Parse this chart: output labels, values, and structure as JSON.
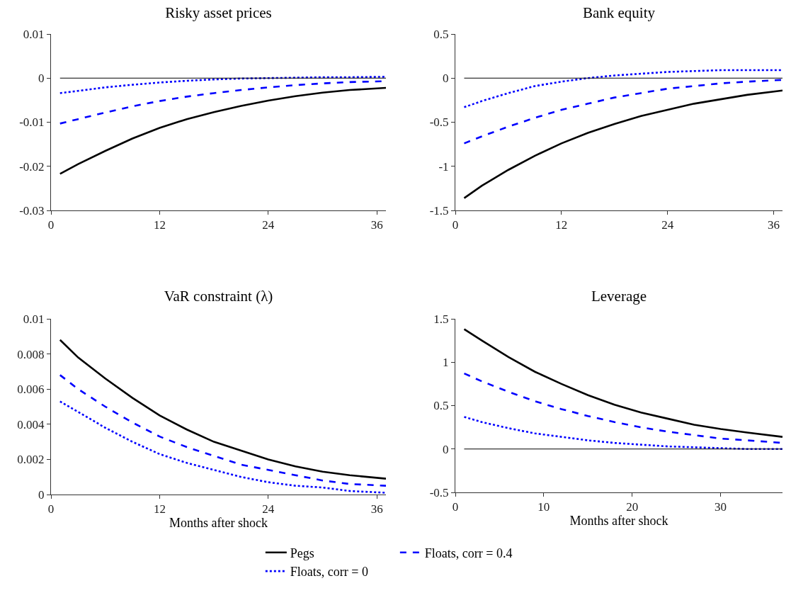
{
  "chart_data": [
    {
      "type": "line",
      "title": "Risky asset prices",
      "x": [
        1,
        3,
        6,
        9,
        12,
        15,
        18,
        21,
        24,
        27,
        30,
        33,
        37
      ],
      "xlim": [
        0,
        37
      ],
      "xticks": [
        0,
        12,
        24,
        36
      ],
      "ylim": [
        -0.03,
        0.01
      ],
      "yticks": [
        -0.03,
        -0.02,
        -0.01,
        0,
        0.01
      ],
      "grid": false,
      "legend": false,
      "ref_lines": [
        {
          "axis": "y",
          "value": 0,
          "color": "#000000"
        }
      ],
      "series": [
        {
          "color": "#000000",
          "line_style": "solid",
          "values": [
            -0.0217,
            -0.0195,
            -0.0165,
            -0.0137,
            -0.0113,
            -0.0093,
            -0.0077,
            -0.0063,
            -0.0051,
            -0.0041,
            -0.0033,
            -0.0027,
            -0.0022
          ]
        },
        {
          "color": "#0000ff",
          "line_style": "dashed",
          "values": [
            -0.0103,
            -0.0093,
            -0.0078,
            -0.0064,
            -0.0052,
            -0.0042,
            -0.0034,
            -0.0027,
            -0.0021,
            -0.0016,
            -0.0012,
            -0.0009,
            -0.0007
          ]
        },
        {
          "color": "#0000ff",
          "line_style": "dotted",
          "values": [
            -0.0034,
            -0.0029,
            -0.0021,
            -0.0015,
            -0.001,
            -0.0006,
            -0.0003,
            -0.0001,
            0,
            0.0001,
            0.0002,
            0.0002,
            0.0003
          ]
        }
      ]
    },
    {
      "type": "line",
      "title": "Bank equity",
      "x": [
        1,
        3,
        6,
        9,
        12,
        15,
        18,
        21,
        24,
        27,
        30,
        33,
        37
      ],
      "xlim": [
        0,
        37
      ],
      "xticks": [
        0,
        12,
        24,
        36
      ],
      "ylim": [
        -1.5,
        0.5
      ],
      "yticks": [
        -1.5,
        -1,
        -0.5,
        0,
        0.5
      ],
      "grid": false,
      "legend": false,
      "ref_lines": [
        {
          "axis": "y",
          "value": 0,
          "color": "#000000"
        }
      ],
      "series": [
        {
          "color": "#000000",
          "line_style": "solid",
          "values": [
            -1.36,
            -1.22,
            -1.04,
            -0.88,
            -0.74,
            -0.62,
            -0.52,
            -0.43,
            -0.36,
            -0.29,
            -0.24,
            -0.19,
            -0.14
          ]
        },
        {
          "color": "#0000ff",
          "line_style": "dashed",
          "values": [
            -0.74,
            -0.66,
            -0.55,
            -0.45,
            -0.36,
            -0.29,
            -0.22,
            -0.17,
            -0.12,
            -0.09,
            -0.06,
            -0.04,
            -0.02
          ]
        },
        {
          "color": "#0000ff",
          "line_style": "dotted",
          "values": [
            -0.33,
            -0.26,
            -0.17,
            -0.09,
            -0.04,
            0,
            0.03,
            0.05,
            0.07,
            0.08,
            0.09,
            0.09,
            0.09
          ]
        }
      ]
    },
    {
      "type": "line",
      "title": "VaR constraint (λ)",
      "xlabel": "Months after shock",
      "x": [
        1,
        3,
        6,
        9,
        12,
        15,
        18,
        21,
        24,
        27,
        30,
        33,
        37
      ],
      "xlim": [
        0,
        37
      ],
      "xticks": [
        0,
        12,
        24,
        36
      ],
      "ylim": [
        0,
        0.01
      ],
      "yticks": [
        0,
        0.002,
        0.004,
        0.006,
        0.008,
        0.01
      ],
      "grid": false,
      "legend": false,
      "series": [
        {
          "color": "#000000",
          "line_style": "solid",
          "values": [
            0.0088,
            0.0078,
            0.0066,
            0.0055,
            0.0045,
            0.0037,
            0.003,
            0.0025,
            0.002,
            0.0016,
            0.0013,
            0.0011,
            0.0009
          ]
        },
        {
          "color": "#0000ff",
          "line_style": "dashed",
          "values": [
            0.0068,
            0.006,
            0.005,
            0.0041,
            0.0033,
            0.0027,
            0.0022,
            0.0017,
            0.0014,
            0.0011,
            0.0008,
            0.0006,
            0.0005
          ]
        },
        {
          "color": "#0000ff",
          "line_style": "dotted",
          "values": [
            0.0053,
            0.0047,
            0.0038,
            0.003,
            0.0023,
            0.0018,
            0.0014,
            0.001,
            0.0007,
            0.0005,
            0.0004,
            0.0002,
            0.0001
          ]
        }
      ]
    },
    {
      "type": "line",
      "title": "Leverage",
      "xlabel": "Months after shock",
      "x": [
        1,
        3,
        6,
        9,
        12,
        15,
        18,
        21,
        24,
        27,
        30,
        33,
        37
      ],
      "xlim": [
        0,
        37
      ],
      "xticks": [
        0,
        10,
        20,
        30
      ],
      "ylim": [
        -0.5,
        1.5
      ],
      "yticks": [
        -0.5,
        0,
        0.5,
        1,
        1.5
      ],
      "grid": false,
      "legend": "bottom",
      "ref_lines": [
        {
          "axis": "y",
          "value": 0,
          "color": "#000000"
        }
      ],
      "series": [
        {
          "name": "Pegs",
          "color": "#000000",
          "line_style": "solid",
          "values": [
            1.38,
            1.25,
            1.06,
            0.89,
            0.75,
            0.62,
            0.51,
            0.42,
            0.35,
            0.28,
            0.23,
            0.19,
            0.14
          ]
        },
        {
          "name": "Floats, corr = 0.4",
          "color": "#0000ff",
          "line_style": "dashed",
          "values": [
            0.87,
            0.78,
            0.66,
            0.55,
            0.46,
            0.38,
            0.31,
            0.25,
            0.2,
            0.16,
            0.12,
            0.1,
            0.07
          ]
        },
        {
          "name": "Floats, corr = 0",
          "color": "#0000ff",
          "line_style": "dotted",
          "values": [
            0.37,
            0.31,
            0.24,
            0.18,
            0.14,
            0.1,
            0.07,
            0.05,
            0.03,
            0.02,
            0.01,
            0,
            0
          ]
        }
      ]
    }
  ]
}
